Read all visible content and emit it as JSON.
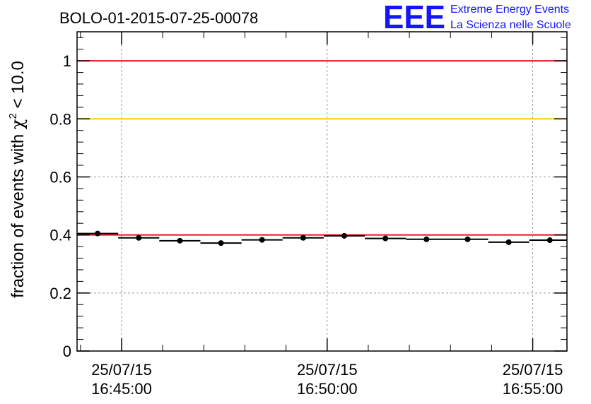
{
  "header": {
    "title": "BOLO-01-2015-07-25-00078",
    "logo_text": "EEE",
    "logo_line1": "Extreme Energy Events",
    "logo_line2": "La Scienza nelle Scuole"
  },
  "colors": {
    "red_line": "#e8141e",
    "yellow_line": "#ffcc00",
    "logo": "#1414ff",
    "grid": "#9a9a9a",
    "data": "#000000"
  },
  "chart_data": {
    "type": "scatter",
    "title": "BOLO-01-2015-07-25-00078",
    "xlabel": "",
    "ylabel": "fraction of events with χ² < 10.0",
    "ylim": [
      0,
      1.1
    ],
    "xlim": [
      "25/07/15 16:43:55",
      "25/07/15 16:55:50"
    ],
    "y_ticks": [
      0,
      0.2,
      0.4,
      0.6,
      0.8,
      1
    ],
    "y_tick_labels": [
      "0",
      "0.2",
      "0.4",
      "0.6",
      "0.8",
      "1"
    ],
    "x_ticks": [
      {
        "date": "25/07/15",
        "time": "16:45:00"
      },
      {
        "date": "25/07/15",
        "time": "16:50:00"
      },
      {
        "date": "25/07/15",
        "time": "16:55:00"
      }
    ],
    "grid": true,
    "reference_lines": [
      {
        "y": 1.0,
        "color": "#e8141e"
      },
      {
        "y": 0.8,
        "color": "#ffcc00"
      },
      {
        "y": 0.4,
        "color": "#e8141e"
      }
    ],
    "points": [
      {
        "x": "16:44:25",
        "x_start": "16:43:55",
        "x_end": "16:44:55",
        "y": 0.405
      },
      {
        "x": "16:45:25",
        "x_start": "16:44:55",
        "x_end": "16:45:55",
        "y": 0.39
      },
      {
        "x": "16:46:25",
        "x_start": "16:45:55",
        "x_end": "16:46:55",
        "y": 0.38
      },
      {
        "x": "16:47:25",
        "x_start": "16:46:55",
        "x_end": "16:47:55",
        "y": 0.372
      },
      {
        "x": "16:48:25",
        "x_start": "16:47:55",
        "x_end": "16:48:55",
        "y": 0.383
      },
      {
        "x": "16:49:25",
        "x_start": "16:48:55",
        "x_end": "16:49:55",
        "y": 0.39
      },
      {
        "x": "16:50:25",
        "x_start": "16:49:55",
        "x_end": "16:50:55",
        "y": 0.397
      },
      {
        "x": "16:51:25",
        "x_start": "16:50:55",
        "x_end": "16:51:55",
        "y": 0.388
      },
      {
        "x": "16:52:25",
        "x_start": "16:51:55",
        "x_end": "16:52:55",
        "y": 0.385
      },
      {
        "x": "16:53:25",
        "x_start": "16:52:55",
        "x_end": "16:53:55",
        "y": 0.385
      },
      {
        "x": "16:54:25",
        "x_start": "16:53:55",
        "x_end": "16:54:55",
        "y": 0.375
      },
      {
        "x": "16:55:25",
        "x_start": "16:54:55",
        "x_end": "16:55:50",
        "y": 0.382
      }
    ]
  }
}
